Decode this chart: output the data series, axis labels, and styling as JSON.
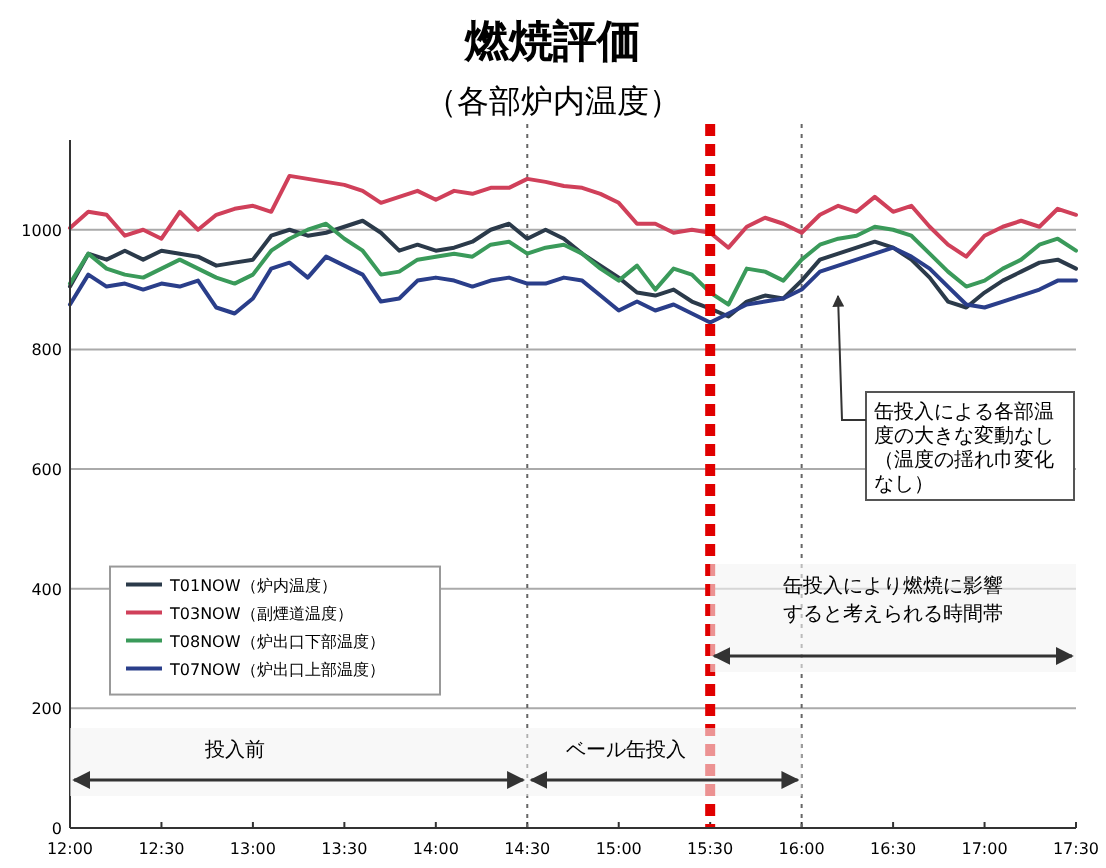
{
  "chart_data": {
    "type": "line",
    "title": "燃焼評価",
    "subtitle": "（各部炉内温度）",
    "x": [
      12.0,
      12.1,
      12.2,
      12.3,
      12.4,
      12.5,
      12.6,
      12.7,
      12.8,
      12.9,
      13.0,
      13.1,
      13.2,
      13.3,
      13.4,
      13.5,
      13.6,
      13.7,
      13.8,
      13.9,
      14.0,
      14.1,
      14.2,
      14.3,
      14.4,
      14.5,
      14.6,
      14.7,
      14.8,
      14.9,
      15.0,
      15.1,
      15.2,
      15.3,
      15.4,
      15.5,
      15.6,
      15.7,
      15.8,
      15.9,
      16.0,
      16.1,
      16.2,
      16.3,
      16.4,
      16.5,
      16.6,
      16.7,
      16.8,
      16.9,
      17.0,
      17.1,
      17.2,
      17.3,
      17.4,
      17.5
    ],
    "xlim": [
      12,
      17.5
    ],
    "xticks": [
      {
        "value": 12,
        "label": "12:00"
      },
      {
        "value": 12.5,
        "label": "12:30"
      },
      {
        "value": 13,
        "label": "13:00"
      },
      {
        "value": 13.5,
        "label": "13:30"
      },
      {
        "value": 14,
        "label": "14:00"
      },
      {
        "value": 14.5,
        "label": "14:30"
      },
      {
        "value": 15,
        "label": "15:00"
      },
      {
        "value": 15.5,
        "label": "15:30"
      },
      {
        "value": 16,
        "label": "16:00"
      },
      {
        "value": 16.5,
        "label": "16:30"
      },
      {
        "value": 17,
        "label": "17:00"
      },
      {
        "value": 17.5,
        "label": "17:30"
      }
    ],
    "ylim": [
      0,
      1150
    ],
    "yticks": [
      0,
      200,
      400,
      600,
      800,
      1000
    ],
    "grid": "y",
    "legend": "left",
    "series": [
      {
        "name": "T01NOW（炉内温度）",
        "color": "#2b3a4a",
        "values": [
          905,
          960,
          950,
          965,
          950,
          965,
          960,
          955,
          940,
          945,
          950,
          990,
          1000,
          990,
          995,
          1005,
          1015,
          995,
          965,
          975,
          965,
          970,
          980,
          1000,
          1010,
          985,
          1000,
          985,
          960,
          940,
          920,
          895,
          890,
          900,
          880,
          868,
          855,
          880,
          890,
          885,
          915,
          950,
          960,
          970,
          980,
          970,
          950,
          920,
          880,
          870,
          895,
          915,
          930,
          945,
          950,
          935
        ]
      },
      {
        "name": "T03NOW（副煙道温度）",
        "color": "#d0405a",
        "values": [
          1003,
          1030,
          1025,
          990,
          1000,
          985,
          1030,
          1000,
          1025,
          1035,
          1040,
          1030,
          1090,
          1085,
          1080,
          1075,
          1065,
          1045,
          1055,
          1065,
          1050,
          1065,
          1060,
          1070,
          1070,
          1085,
          1080,
          1073,
          1070,
          1060,
          1045,
          1010,
          1010,
          995,
          1000,
          995,
          970,
          1005,
          1020,
          1010,
          995,
          1025,
          1040,
          1030,
          1055,
          1030,
          1040,
          1005,
          975,
          955,
          990,
          1005,
          1015,
          1005,
          1035,
          1025
        ]
      },
      {
        "name": "T08NOW（炉出口下部温度）",
        "color": "#3a9a5a",
        "values": [
          910,
          960,
          935,
          925,
          920,
          935,
          950,
          935,
          920,
          910,
          925,
          965,
          985,
          1000,
          1010,
          985,
          965,
          925,
          930,
          950,
          955,
          960,
          955,
          975,
          980,
          960,
          970,
          975,
          960,
          935,
          915,
          940,
          900,
          935,
          925,
          895,
          875,
          935,
          930,
          915,
          950,
          975,
          985,
          990,
          1005,
          1000,
          990,
          960,
          930,
          905,
          915,
          935,
          950,
          975,
          985,
          965
        ]
      },
      {
        "name": "T07NOW（炉出口上部温度）",
        "color": "#2a3e8a",
        "values": [
          875,
          925,
          905,
          910,
          900,
          910,
          905,
          915,
          870,
          860,
          885,
          935,
          945,
          920,
          955,
          940,
          925,
          880,
          885,
          915,
          920,
          915,
          905,
          915,
          920,
          910,
          910,
          920,
          915,
          890,
          865,
          880,
          865,
          875,
          860,
          845,
          860,
          875,
          880,
          885,
          900,
          930,
          940,
          950,
          960,
          970,
          955,
          935,
          905,
          875,
          870,
          880,
          890,
          900,
          915,
          915
        ]
      }
    ],
    "ref_lines": [
      {
        "axis": "x",
        "value": 14.5,
        "color": "#666666",
        "line_style": "dotted"
      },
      {
        "axis": "x",
        "value": 16,
        "color": "#666666",
        "line_style": "dotted"
      },
      {
        "axis": "x",
        "value": 15.5,
        "color": "#e00000",
        "line_style": "dashed"
      }
    ],
    "bands": [
      {
        "axis": "x",
        "from": 12,
        "to": 14.5,
        "label": "投入前"
      },
      {
        "axis": "x",
        "from": 14.5,
        "to": 16,
        "label": "ベール缶投入"
      },
      {
        "axis": "x",
        "from": 15.5,
        "to": 17.5,
        "label": "缶投入により燃焼に影響すると考えられる時間帯"
      }
    ],
    "annotations": [
      "缶投入による各部温度の大きな変動なし（温度の揺れ巾変化なし）"
    ]
  }
}
